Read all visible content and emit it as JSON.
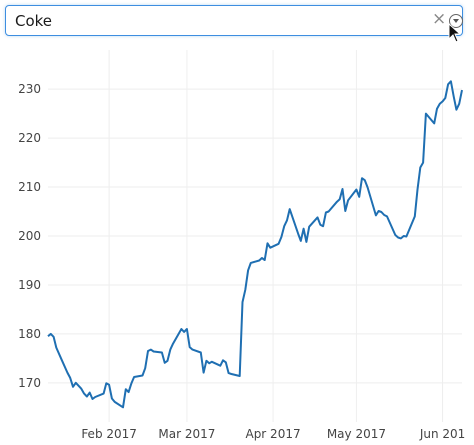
{
  "search": {
    "value": "Coke"
  },
  "icons": {
    "clear": "close-icon",
    "dropdown": "chevron-down-icon",
    "cursor": "mouse-pointer-icon"
  },
  "colors": {
    "accent": "#3d8ee0",
    "line": "#1f6fb2"
  },
  "chart_data": {
    "type": "line",
    "title": "",
    "xlabel": "",
    "ylabel": "",
    "grid": true,
    "ylim": [
      162,
      238
    ],
    "xlim": [
      "2017-01-10",
      "2017-06-08"
    ],
    "yticks": [
      170,
      180,
      190,
      200,
      210,
      220,
      230
    ],
    "xticks": [
      {
        "label": "Feb 2017",
        "x": "2017-02-01"
      },
      {
        "label": "Mar 2017",
        "x": "2017-03-01"
      },
      {
        "label": "Apr 2017",
        "x": "2017-04-01"
      },
      {
        "label": "May 2017",
        "x": "2017-05-01"
      },
      {
        "label": "Jun 201",
        "x": "2017-06-01"
      }
    ],
    "series": [
      {
        "values": [
          [
            "2017-01-10",
            179.5
          ],
          [
            "2017-01-11",
            180.0
          ],
          [
            "2017-01-12",
            179.4
          ],
          [
            "2017-01-13",
            177.2
          ],
          [
            "2017-01-15",
            174.6
          ],
          [
            "2017-01-17",
            172.1
          ],
          [
            "2017-01-18",
            171.0
          ],
          [
            "2017-01-19",
            169.2
          ],
          [
            "2017-01-20",
            170.0
          ],
          [
            "2017-01-22",
            168.8
          ],
          [
            "2017-01-23",
            167.8
          ],
          [
            "2017-01-24",
            167.2
          ],
          [
            "2017-01-25",
            168.0
          ],
          [
            "2017-01-26",
            166.7
          ],
          [
            "2017-01-27",
            167.1
          ],
          [
            "2017-01-30",
            167.8
          ],
          [
            "2017-01-31",
            169.9
          ],
          [
            "2017-02-01",
            169.6
          ],
          [
            "2017-02-02",
            166.8
          ],
          [
            "2017-02-03",
            166.1
          ],
          [
            "2017-02-06",
            165.0
          ],
          [
            "2017-02-07",
            168.7
          ],
          [
            "2017-02-08",
            168.1
          ],
          [
            "2017-02-09",
            169.9
          ],
          [
            "2017-02-10",
            171.2
          ],
          [
            "2017-02-13",
            171.5
          ],
          [
            "2017-02-14",
            173.0
          ],
          [
            "2017-02-15",
            176.5
          ],
          [
            "2017-02-16",
            176.8
          ],
          [
            "2017-02-17",
            176.4
          ],
          [
            "2017-02-20",
            176.2
          ],
          [
            "2017-02-21",
            174.1
          ],
          [
            "2017-02-22",
            174.5
          ],
          [
            "2017-02-23",
            176.8
          ],
          [
            "2017-02-24",
            178.0
          ],
          [
            "2017-02-27",
            181.0
          ],
          [
            "2017-02-28",
            180.4
          ],
          [
            "2017-03-01",
            181.0
          ],
          [
            "2017-03-02",
            177.3
          ],
          [
            "2017-03-03",
            176.8
          ],
          [
            "2017-03-06",
            176.2
          ],
          [
            "2017-03-07",
            172.1
          ],
          [
            "2017-03-08",
            174.5
          ],
          [
            "2017-03-09",
            174.0
          ],
          [
            "2017-03-10",
            174.3
          ],
          [
            "2017-03-13",
            173.5
          ],
          [
            "2017-03-14",
            174.6
          ],
          [
            "2017-03-15",
            174.2
          ],
          [
            "2017-03-16",
            172.0
          ],
          [
            "2017-03-17",
            171.8
          ],
          [
            "2017-03-20",
            171.4
          ],
          [
            "2017-03-21",
            186.5
          ],
          [
            "2017-03-22",
            189.0
          ],
          [
            "2017-03-23",
            193.0
          ],
          [
            "2017-03-24",
            194.5
          ],
          [
            "2017-03-27",
            195.0
          ],
          [
            "2017-03-28",
            195.5
          ],
          [
            "2017-03-29",
            195.1
          ],
          [
            "2017-03-30",
            198.5
          ],
          [
            "2017-03-31",
            197.6
          ],
          [
            "2017-04-03",
            198.4
          ],
          [
            "2017-04-04",
            199.8
          ],
          [
            "2017-04-05",
            202.0
          ],
          [
            "2017-04-06",
            203.2
          ],
          [
            "2017-04-07",
            205.5
          ],
          [
            "2017-04-10",
            200.5
          ],
          [
            "2017-04-11",
            199.0
          ],
          [
            "2017-04-12",
            201.5
          ],
          [
            "2017-04-13",
            198.8
          ],
          [
            "2017-04-14",
            201.9
          ],
          [
            "2017-04-17",
            203.8
          ],
          [
            "2017-04-18",
            202.3
          ],
          [
            "2017-04-19",
            202.0
          ],
          [
            "2017-04-20",
            204.8
          ],
          [
            "2017-04-21",
            205.0
          ],
          [
            "2017-04-24",
            207.0
          ],
          [
            "2017-04-25",
            207.5
          ],
          [
            "2017-04-26",
            209.6
          ],
          [
            "2017-04-27",
            205.1
          ],
          [
            "2017-04-28",
            207.3
          ],
          [
            "2017-05-01",
            209.5
          ],
          [
            "2017-05-02",
            208.0
          ],
          [
            "2017-05-03",
            211.8
          ],
          [
            "2017-05-04",
            211.4
          ],
          [
            "2017-05-05",
            210.0
          ],
          [
            "2017-05-08",
            204.2
          ],
          [
            "2017-05-09",
            205.1
          ],
          [
            "2017-05-10",
            204.9
          ],
          [
            "2017-05-11",
            204.3
          ],
          [
            "2017-05-12",
            204.0
          ],
          [
            "2017-05-15",
            200.2
          ],
          [
            "2017-05-16",
            199.7
          ],
          [
            "2017-05-17",
            199.5
          ],
          [
            "2017-05-18",
            200.0
          ],
          [
            "2017-05-19",
            199.9
          ],
          [
            "2017-05-22",
            204.0
          ],
          [
            "2017-05-23",
            209.5
          ],
          [
            "2017-05-24",
            214.0
          ],
          [
            "2017-05-25",
            215.0
          ],
          [
            "2017-05-26",
            225.0
          ],
          [
            "2017-05-29",
            223.0
          ],
          [
            "2017-05-30",
            226.0
          ],
          [
            "2017-05-31",
            227.0
          ],
          [
            "2017-06-01",
            227.5
          ],
          [
            "2017-06-02",
            228.2
          ],
          [
            "2017-06-03",
            231.0
          ],
          [
            "2017-06-04",
            231.6
          ],
          [
            "2017-06-05",
            228.5
          ],
          [
            "2017-06-06",
            225.8
          ],
          [
            "2017-06-07",
            227.0
          ],
          [
            "2017-06-08",
            229.8
          ]
        ]
      }
    ]
  }
}
